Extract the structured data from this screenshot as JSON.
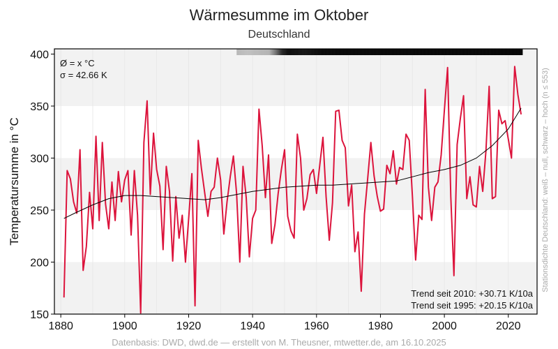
{
  "chart_data": {
    "type": "line",
    "title": "Wärmesumme im Oktober",
    "subtitle": "Deutschland",
    "ylabel": "Temperatursumme in °C",
    "xlabel": "",
    "xlim": [
      1878,
      2029
    ],
    "ylim": [
      150,
      405
    ],
    "x_ticks": [
      1880,
      1900,
      1920,
      1940,
      1960,
      1980,
      2000,
      2020
    ],
    "y_ticks": [
      150,
      200,
      250,
      300,
      350,
      400
    ],
    "grid": "horizontal bands",
    "stats": {
      "mean": "Ø = x °C",
      "sigma": "σ = 42.66 K"
    },
    "trend_2010": "Trend seit 2010: +30.71 K/10a",
    "trend_1995": "Trend seit 1995: +20.15 K/10a",
    "side_note": "Stationsdichte Deutschland: weiß – null, schwarz – hoch (n ≤ 553)",
    "footer": "Datenbasis: DWD, dwd.de — erstellt von M. Theusner, mtwetter.de, am 16.10.2025",
    "series": [
      {
        "name": "Wärmesumme Oktober",
        "color": "#dc143c",
        "start_year": 1881,
        "values": [
          166,
          288,
          280,
          258,
          247,
          308,
          192,
          215,
          267,
          232,
          321,
          240,
          315,
          256,
          232,
          277,
          240,
          287,
          258,
          279,
          288,
          226,
          288,
          245,
          151,
          315,
          355,
          265,
          324,
          289,
          273,
          212,
          292,
          268,
          201,
          263,
          223,
          245,
          200,
          242,
          285,
          158,
          317,
          290,
          267,
          244,
          268,
          272,
          300,
          279,
          227,
          258,
          282,
          302,
          266,
          200,
          292,
          262,
          205,
          242,
          250,
          347,
          312,
          262,
          303,
          218,
          236,
          266,
          289,
          308,
          244,
          230,
          223,
          323,
          300,
          250,
          261,
          284,
          289,
          266,
          293,
          320,
          263,
          221,
          257,
          345,
          346,
          317,
          310,
          254,
          274,
          210,
          229,
          172,
          246,
          280,
          315,
          283,
          263,
          249,
          251,
          293,
          285,
          307,
          275,
          291,
          289,
          323,
          317,
          263,
          202,
          245,
          241,
          366,
          272,
          240,
          272,
          277,
          303,
          346,
          387,
          263,
          187,
          313,
          338,
          360,
          261,
          282,
          255,
          253,
          292,
          268,
          307,
          369,
          261,
          263,
          346,
          333,
          336,
          318,
          300,
          388,
          361,
          342
        ]
      },
      {
        "name": "Trend (gleitend)",
        "color": "#000000",
        "points": [
          [
            1881,
            242
          ],
          [
            1885,
            248
          ],
          [
            1890,
            255
          ],
          [
            1895,
            261
          ],
          [
            1900,
            264
          ],
          [
            1905,
            264
          ],
          [
            1910,
            263
          ],
          [
            1915,
            262
          ],
          [
            1920,
            261
          ],
          [
            1925,
            260
          ],
          [
            1930,
            262
          ],
          [
            1935,
            265
          ],
          [
            1940,
            268
          ],
          [
            1945,
            270
          ],
          [
            1950,
            272
          ],
          [
            1955,
            273
          ],
          [
            1960,
            274
          ],
          [
            1965,
            274
          ],
          [
            1970,
            275
          ],
          [
            1975,
            276
          ],
          [
            1980,
            277
          ],
          [
            1985,
            278
          ],
          [
            1990,
            282
          ],
          [
            1995,
            286
          ],
          [
            2000,
            289
          ],
          [
            2005,
            293
          ],
          [
            2010,
            300
          ],
          [
            2015,
            312
          ],
          [
            2020,
            328
          ],
          [
            2024,
            348
          ]
        ]
      }
    ],
    "station_density_bar": [
      [
        1935,
        0.28
      ],
      [
        1938,
        0.25
      ],
      [
        1945,
        0.3
      ],
      [
        1947,
        0.55
      ],
      [
        1949,
        0.85
      ],
      [
        1951,
        0.95
      ],
      [
        1956,
        0.92
      ],
      [
        1962,
        0.97
      ],
      [
        2024,
        0.98
      ]
    ]
  }
}
